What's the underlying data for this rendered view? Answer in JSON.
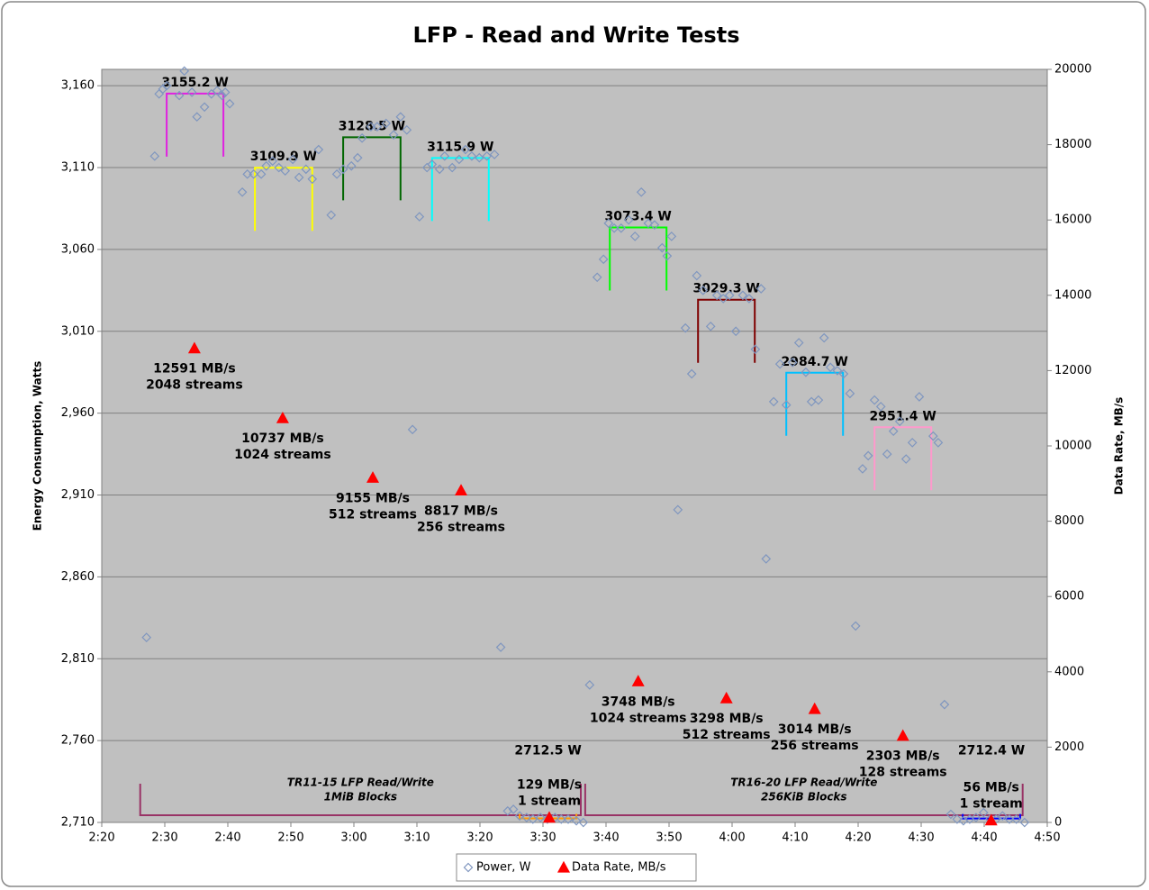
{
  "chart_data": {
    "type": "scatter",
    "title": "LFP - Read and Write Tests",
    "ylabel": "Energy Consumption, Watts",
    "y2label": "Data Rate, MB/s",
    "xlim": [
      140,
      290
    ],
    "xticks": [
      {
        "value": 140,
        "label": "2:20"
      },
      {
        "value": 150,
        "label": "2:30"
      },
      {
        "value": 160,
        "label": "2:40"
      },
      {
        "value": 170,
        "label": "2:50"
      },
      {
        "value": 180,
        "label": "3:00"
      },
      {
        "value": 190,
        "label": "3:10"
      },
      {
        "value": 200,
        "label": "3:20"
      },
      {
        "value": 210,
        "label": "3:30"
      },
      {
        "value": 220,
        "label": "3:40"
      },
      {
        "value": 230,
        "label": "3:50"
      },
      {
        "value": 240,
        "label": "4:00"
      },
      {
        "value": 250,
        "label": "4:10"
      },
      {
        "value": 260,
        "label": "4:20"
      },
      {
        "value": 270,
        "label": "4:30"
      },
      {
        "value": 280,
        "label": "4:40"
      },
      {
        "value": 290,
        "label": "4:50"
      }
    ],
    "ylim": [
      2710,
      3170
    ],
    "yticks": [
      {
        "value": 2710,
        "label": "2,710"
      },
      {
        "value": 2760,
        "label": "2,760"
      },
      {
        "value": 2810,
        "label": "2,810"
      },
      {
        "value": 2860,
        "label": "2,860"
      },
      {
        "value": 2910,
        "label": "2,910"
      },
      {
        "value": 2960,
        "label": "2,960"
      },
      {
        "value": 3010,
        "label": "3,010"
      },
      {
        "value": 3060,
        "label": "3,060"
      },
      {
        "value": 3110,
        "label": "3,110"
      },
      {
        "value": 3160,
        "label": "3,160"
      }
    ],
    "y2lim": [
      0,
      20000
    ],
    "y2ticks": [
      0,
      2000,
      4000,
      6000,
      8000,
      10000,
      12000,
      14000,
      16000,
      18000,
      20000
    ],
    "grid": true,
    "series": [
      {
        "name": "Power, W",
        "color": "#7f96bf",
        "marker": "diamond",
        "x": [
          147.1,
          148.4,
          149.1,
          149.7,
          150.3,
          152.3,
          153.1,
          154.3,
          155.1,
          156.3,
          157.4,
          158.3,
          159.1,
          159.6,
          160.3,
          162.3,
          163.1,
          164.1,
          165.3,
          166.1,
          167.1,
          168.1,
          169.1,
          170.3,
          171.3,
          172.4,
          173.4,
          174.4,
          176.4,
          177.3,
          178.3,
          179.6,
          180.6,
          181.3,
          182.7,
          183.7,
          185.1,
          186.3,
          187.4,
          188.4,
          189.3,
          190.4,
          191.6,
          192.4,
          193.6,
          194.4,
          195.6,
          196.7,
          197.7,
          198.7,
          199.9,
          201.1,
          202.3,
          203.3,
          204.4,
          205.3,
          206.3,
          207.4,
          208.4,
          209.6,
          210.7,
          211.9,
          212.9,
          214,
          215.3,
          216.4,
          217.4,
          218.6,
          219.6,
          220.4,
          221.3,
          222.4,
          223.6,
          224.6,
          225.6,
          226.7,
          227.7,
          228.9,
          229.7,
          230.4,
          231.4,
          232.6,
          233.6,
          234.4,
          235.4,
          236.6,
          237.6,
          238.6,
          239.6,
          240.6,
          241.7,
          242.7,
          243.7,
          244.6,
          245.4,
          246.6,
          247.6,
          248.6,
          249.6,
          250.6,
          251.7,
          252.6,
          253.7,
          254.6,
          255.6,
          256.7,
          257.7,
          258.7,
          259.6,
          260.7,
          261.6,
          262.6,
          263.6,
          264.6,
          265.6,
          266.6,
          267.6,
          268.6,
          269.7,
          271.9,
          272.7,
          273.7,
          274.7,
          275.7,
          276.7,
          277.7,
          278.7,
          279.9,
          280.9,
          281.9,
          282.9,
          284,
          285.1,
          286.4
        ],
        "values": [
          2823,
          3117,
          3155,
          3158,
          3160,
          3154,
          3169,
          3156,
          3141,
          3147,
          3155,
          3157,
          3154,
          3156,
          3149,
          3095,
          3106,
          3106,
          3106,
          3111,
          3114,
          3110,
          3108,
          3115,
          3104,
          3109,
          3103,
          3121,
          3081,
          3106,
          3109,
          3111,
          3116,
          3128,
          3135,
          3135,
          3137,
          3130,
          3141,
          3133,
          2950,
          3080,
          3110,
          3112,
          3109,
          3117,
          3110,
          3115,
          3121,
          3117,
          3116,
          3117,
          3118,
          2817,
          2717,
          2718,
          2714,
          2713,
          2712,
          2713,
          2712,
          2713,
          2712,
          2712,
          2711,
          2710,
          2794,
          3043,
          3054,
          3076,
          3073,
          3073,
          3078,
          3068,
          3095,
          3076,
          3075,
          3061,
          3056,
          3068,
          2901,
          3012,
          2984,
          3044,
          3035,
          3013,
          3032,
          3030,
          3032,
          3010,
          3032,
          3030,
          2999,
          3036,
          2871,
          2967,
          2990,
          2965,
          2991,
          3003,
          2985,
          2967,
          2968,
          3006,
          2988,
          2986,
          2984,
          2972,
          2830,
          2926,
          2934,
          2968,
          2964,
          2935,
          2949,
          2955,
          2932,
          2942,
          2970,
          2946,
          2942,
          2782,
          2715,
          2712,
          2711,
          2712,
          2713,
          2716,
          2712,
          2712,
          2714,
          2712,
          2712,
          2710
        ]
      },
      {
        "name": "Data Rate, MB/s",
        "color": "#ff0000",
        "marker": "triangle",
        "axis": "y2",
        "x": [
          154.7,
          168.7,
          183,
          197,
          211,
          225.1,
          239.1,
          253.1,
          267.1,
          281.1
        ],
        "values": [
          12591,
          10737,
          9155,
          8817,
          129,
          3748,
          3298,
          3014,
          2303,
          56
        ],
        "value_labels": [
          "12591 MB/s",
          "10737 MB/s",
          "9155 MB/s",
          "8817 MB/s",
          "129 MB/s",
          "3748 MB/s",
          "3298 MB/s",
          "3014 MB/s",
          "2303 MB/s",
          "56 MB/s"
        ],
        "stream_labels": [
          "2048 streams",
          "1024 streams",
          "512 streams",
          "256 streams",
          "1 stream",
          "1024 streams",
          "512 streams",
          "256 streams",
          "128 streams",
          "1 stream"
        ]
      }
    ],
    "averages": [
      {
        "label": "3155.2 W",
        "value": 3155.2,
        "x": [
          150.3,
          159.3
        ],
        "color": "#e020e0"
      },
      {
        "label": "3109.9 W",
        "value": 3109.9,
        "x": [
          164.3,
          173.4
        ],
        "color": "#ffff00"
      },
      {
        "label": "3128.5 W",
        "value": 3128.5,
        "x": [
          178.3,
          187.4
        ],
        "color": "#006600"
      },
      {
        "label": "3115.9 W",
        "value": 3115.9,
        "x": [
          192.4,
          201.4
        ],
        "color": "#00ffff"
      },
      {
        "label": "3073.4 W",
        "value": 3073.4,
        "x": [
          220.6,
          229.6
        ],
        "color": "#00ff00"
      },
      {
        "label": "3029.3 W",
        "value": 3029.3,
        "x": [
          234.6,
          243.6
        ],
        "color": "#800000"
      },
      {
        "label": "2984.7 W",
        "value": 2984.7,
        "x": [
          248.6,
          257.6
        ],
        "color": "#00c0ff"
      },
      {
        "label": "2951.4 W",
        "value": 2951.4,
        "x": [
          262.6,
          271.6
        ],
        "color": "#ff99cc"
      },
      {
        "label": "2712.5 W",
        "value": 2712.5,
        "x": [
          206.3,
          215.3
        ],
        "color": "#ff9900"
      },
      {
        "label": "2712.4 W",
        "value": 2712.4,
        "x": [
          276.6,
          285.7
        ],
        "color": "#0000ff"
      }
    ],
    "ranges": [
      {
        "lines": [
          "TR11-15 LFP Read/Write",
          "1MiB Blocks"
        ],
        "x": [
          146.1,
          216
        ]
      },
      {
        "lines": [
          "TR16-20 LFP Read/Write",
          "256KiB Blocks"
        ],
        "x": [
          216.7,
          286.1
        ]
      }
    ]
  }
}
